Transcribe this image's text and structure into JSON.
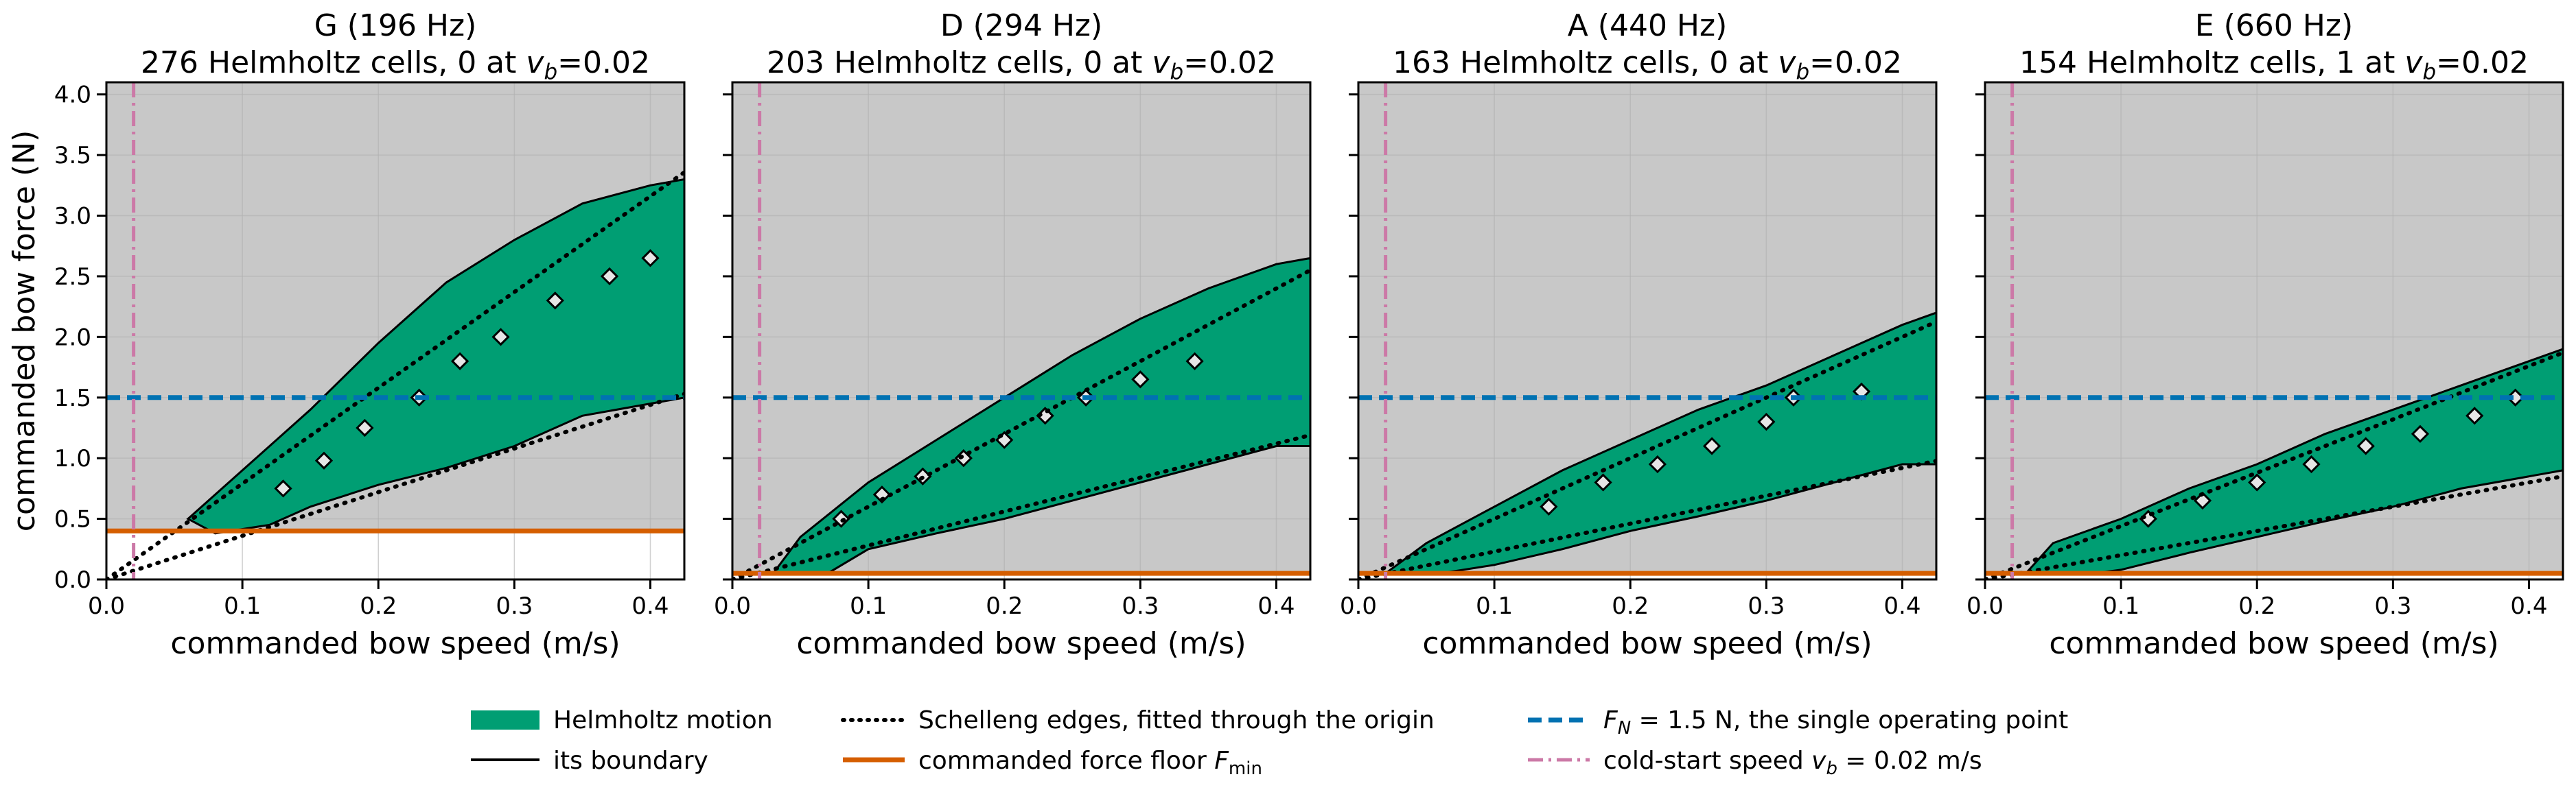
{
  "colors": {
    "background": "#c8c8c8",
    "helmholtz": "#009e73",
    "boundary": "#000000",
    "schelleng": "#000000",
    "force_floor": "#d55e00",
    "operating_point": "#0072b2",
    "cold_start": "#cc79a7"
  },
  "chart_data": [
    {
      "type": "heatmap",
      "title_line1": "G  (196 Hz)",
      "title_line2_prefix": "276 Helmholtz cells, 0 at ",
      "title_line2_suffix": "=0.02",
      "xlabel": "commanded bow speed  (m/s)",
      "ylabel": "commanded bow force  (N)",
      "xlim": [
        0.0,
        0.425
      ],
      "ylim": [
        0.0,
        4.1
      ],
      "xticks": [
        "0.0",
        "0.1",
        "0.2",
        "0.3",
        "0.4"
      ],
      "yticks": [
        "0.0",
        "0.5",
        "1.0",
        "1.5",
        "2.0",
        "2.5",
        "3.0",
        "3.5",
        "4.0"
      ],
      "grid": true,
      "force_floor": 0.4,
      "operating_force": 1.5,
      "cold_start_speed": 0.02,
      "schelleng_upper_slope": 7.9,
      "schelleng_lower_slope": 3.6,
      "helmholtz_band": [
        [
          0.06,
          0.5
        ],
        [
          0.1,
          0.9
        ],
        [
          0.15,
          1.4
        ],
        [
          0.2,
          1.95
        ],
        [
          0.25,
          2.45
        ],
        [
          0.3,
          2.8
        ],
        [
          0.35,
          3.1
        ],
        [
          0.4,
          3.25
        ],
        [
          0.425,
          3.3
        ],
        [
          0.425,
          1.5
        ],
        [
          0.4,
          1.45
        ],
        [
          0.35,
          1.35
        ],
        [
          0.3,
          1.1
        ],
        [
          0.25,
          0.92
        ],
        [
          0.2,
          0.78
        ],
        [
          0.15,
          0.6
        ],
        [
          0.12,
          0.45
        ],
        [
          0.08,
          0.38
        ]
      ],
      "holes": [
        [
          0.13,
          0.75
        ],
        [
          0.16,
          0.98
        ],
        [
          0.19,
          1.25
        ],
        [
          0.23,
          1.5
        ],
        [
          0.26,
          1.8
        ],
        [
          0.29,
          2.0
        ],
        [
          0.33,
          2.3
        ],
        [
          0.37,
          2.5
        ],
        [
          0.4,
          2.65
        ]
      ]
    },
    {
      "type": "heatmap",
      "title_line1": "D  (294 Hz)",
      "title_line2_prefix": "203 Helmholtz cells, 0 at ",
      "title_line2_suffix": "=0.02",
      "xlabel": "commanded bow speed  (m/s)",
      "ylabel": "",
      "xlim": [
        0.0,
        0.425
      ],
      "ylim": [
        0.0,
        4.1
      ],
      "xticks": [
        "0.0",
        "0.1",
        "0.2",
        "0.3",
        "0.4"
      ],
      "yticks": [
        "0.0",
        "0.5",
        "1.0",
        "1.5",
        "2.0",
        "2.5",
        "3.0",
        "3.5",
        "4.0"
      ],
      "grid": true,
      "force_floor": 0.05,
      "operating_force": 1.5,
      "cold_start_speed": 0.02,
      "schelleng_upper_slope": 6.0,
      "schelleng_lower_slope": 2.8,
      "helmholtz_band": [
        [
          0.03,
          0.05
        ],
        [
          0.05,
          0.35
        ],
        [
          0.1,
          0.8
        ],
        [
          0.15,
          1.15
        ],
        [
          0.2,
          1.5
        ],
        [
          0.25,
          1.85
        ],
        [
          0.3,
          2.15
        ],
        [
          0.35,
          2.4
        ],
        [
          0.4,
          2.6
        ],
        [
          0.425,
          2.65
        ],
        [
          0.425,
          1.1
        ],
        [
          0.4,
          1.1
        ],
        [
          0.35,
          0.95
        ],
        [
          0.3,
          0.8
        ],
        [
          0.25,
          0.65
        ],
        [
          0.2,
          0.5
        ],
        [
          0.15,
          0.38
        ],
        [
          0.1,
          0.25
        ],
        [
          0.07,
          0.05
        ]
      ],
      "holes": [
        [
          0.08,
          0.5
        ],
        [
          0.11,
          0.7
        ],
        [
          0.14,
          0.85
        ],
        [
          0.17,
          1.0
        ],
        [
          0.2,
          1.15
        ],
        [
          0.23,
          1.35
        ],
        [
          0.26,
          1.5
        ],
        [
          0.3,
          1.65
        ],
        [
          0.34,
          1.8
        ]
      ]
    },
    {
      "type": "heatmap",
      "title_line1": "A  (440 Hz)",
      "title_line2_prefix": "163 Helmholtz cells, 0 at ",
      "title_line2_suffix": "=0.02",
      "xlabel": "commanded bow speed  (m/s)",
      "ylabel": "",
      "xlim": [
        0.0,
        0.425
      ],
      "ylim": [
        0.0,
        4.1
      ],
      "xticks": [
        "0.0",
        "0.1",
        "0.2",
        "0.3",
        "0.4"
      ],
      "yticks": [
        "0.0",
        "0.5",
        "1.0",
        "1.5",
        "2.0",
        "2.5",
        "3.0",
        "3.5",
        "4.0"
      ],
      "grid": true,
      "force_floor": 0.05,
      "operating_force": 1.5,
      "cold_start_speed": 0.02,
      "schelleng_upper_slope": 5.0,
      "schelleng_lower_slope": 2.3,
      "helmholtz_band": [
        [
          0.02,
          0.05
        ],
        [
          0.05,
          0.3
        ],
        [
          0.1,
          0.6
        ],
        [
          0.15,
          0.9
        ],
        [
          0.2,
          1.15
        ],
        [
          0.25,
          1.4
        ],
        [
          0.3,
          1.6
        ],
        [
          0.35,
          1.85
        ],
        [
          0.4,
          2.1
        ],
        [
          0.425,
          2.2
        ],
        [
          0.425,
          0.95
        ],
        [
          0.4,
          0.95
        ],
        [
          0.35,
          0.8
        ],
        [
          0.3,
          0.65
        ],
        [
          0.25,
          0.52
        ],
        [
          0.2,
          0.4
        ],
        [
          0.15,
          0.25
        ],
        [
          0.1,
          0.12
        ],
        [
          0.06,
          0.05
        ]
      ],
      "holes": [
        [
          0.14,
          0.6
        ],
        [
          0.18,
          0.8
        ],
        [
          0.22,
          0.95
        ],
        [
          0.26,
          1.1
        ],
        [
          0.3,
          1.3
        ],
        [
          0.32,
          1.5
        ],
        [
          0.37,
          1.55
        ]
      ]
    },
    {
      "type": "heatmap",
      "title_line1": "E  (660 Hz)",
      "title_line2_prefix": "154 Helmholtz cells, 1 at ",
      "title_line2_suffix": "=0.02",
      "xlabel": "commanded bow speed  (m/s)",
      "ylabel": "",
      "xlim": [
        0.0,
        0.425
      ],
      "ylim": [
        0.0,
        4.1
      ],
      "xticks": [
        "0.0",
        "0.1",
        "0.2",
        "0.3",
        "0.4"
      ],
      "yticks": [
        "0.0",
        "0.5",
        "1.0",
        "1.5",
        "2.0",
        "2.5",
        "3.0",
        "3.5",
        "4.0"
      ],
      "grid": true,
      "force_floor": 0.05,
      "operating_force": 1.5,
      "cold_start_speed": 0.02,
      "schelleng_upper_slope": 4.4,
      "schelleng_lower_slope": 2.0,
      "helmholtz_band": [
        [
          0.03,
          0.05
        ],
        [
          0.05,
          0.3
        ],
        [
          0.1,
          0.5
        ],
        [
          0.15,
          0.75
        ],
        [
          0.2,
          0.95
        ],
        [
          0.25,
          1.2
        ],
        [
          0.3,
          1.4
        ],
        [
          0.35,
          1.6
        ],
        [
          0.4,
          1.8
        ],
        [
          0.425,
          1.9
        ],
        [
          0.425,
          0.9
        ],
        [
          0.4,
          0.85
        ],
        [
          0.35,
          0.75
        ],
        [
          0.3,
          0.6
        ],
        [
          0.25,
          0.48
        ],
        [
          0.2,
          0.35
        ],
        [
          0.15,
          0.22
        ],
        [
          0.1,
          0.08
        ],
        [
          0.08,
          0.05
        ]
      ],
      "holes": [
        [
          0.12,
          0.5
        ],
        [
          0.16,
          0.65
        ],
        [
          0.2,
          0.8
        ],
        [
          0.24,
          0.95
        ],
        [
          0.28,
          1.1
        ],
        [
          0.32,
          1.2
        ],
        [
          0.36,
          1.35
        ],
        [
          0.39,
          1.5
        ]
      ]
    }
  ],
  "legend": {
    "helmholtz": "Helmholtz motion",
    "boundary": "its boundary",
    "schelleng": "Schelleng edges, fitted through the origin",
    "force_floor_prefix": "commanded force floor ",
    "operating_suffix": " = 1.5 N, the single operating point",
    "cold_start_prefix": "cold-start speed ",
    "cold_start_suffix": " = 0.02 m/s"
  }
}
